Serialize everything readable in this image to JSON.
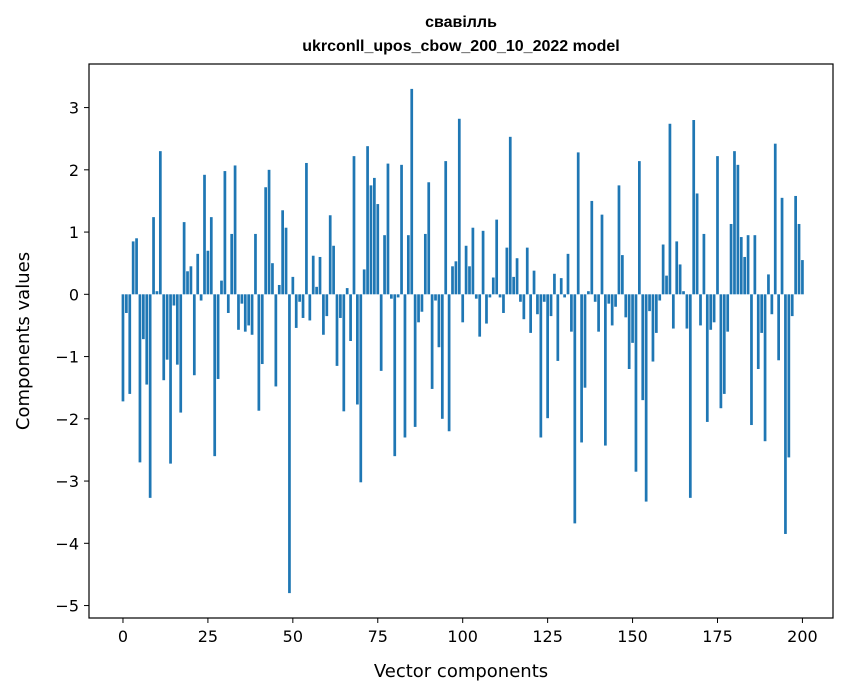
{
  "chart_data": {
    "type": "bar",
    "title_line1": "свавілль",
    "title_line2": "ukrconll_upos_cbow_200_10_2022 model",
    "xlabel": "Vector components",
    "ylabel": "Components values",
    "xlim": [
      -10,
      209
    ],
    "ylim": [
      -5.2,
      3.7
    ],
    "xticks": [
      0,
      25,
      50,
      75,
      100,
      125,
      150,
      175,
      200
    ],
    "yticks": [
      3,
      2,
      1,
      0,
      -1,
      -2,
      -3,
      -4,
      -5
    ],
    "bar_color": "#1f77b4",
    "grid": false,
    "legend": "none",
    "values": [
      -1.72,
      -0.3,
      -1.6,
      0.85,
      0.9,
      -2.7,
      -0.72,
      -1.45,
      -3.27,
      1.24,
      0.05,
      2.3,
      -1.38,
      -1.05,
      -2.72,
      -0.18,
      -1.13,
      -1.9,
      1.16,
      0.37,
      0.45,
      -1.3,
      0.65,
      -0.1,
      1.92,
      0.7,
      1.24,
      -2.6,
      -1.36,
      0.22,
      1.98,
      -0.3,
      0.97,
      2.07,
      -0.57,
      -0.15,
      -0.6,
      -0.5,
      -0.65,
      0.97,
      -1.87,
      -1.12,
      1.72,
      2.0,
      0.5,
      -1.48,
      0.15,
      1.35,
      1.07,
      -4.8,
      0.28,
      -0.54,
      -0.12,
      -0.38,
      2.11,
      -0.42,
      0.62,
      0.12,
      0.6,
      -0.65,
      -0.35,
      1.27,
      0.78,
      -1.15,
      -0.38,
      -1.88,
      0.1,
      -0.75,
      2.22,
      -1.77,
      -3.02,
      0.4,
      2.38,
      1.75,
      1.87,
      1.45,
      -1.23,
      0.95,
      2.1,
      -0.07,
      -2.6,
      -0.05,
      2.08,
      -2.3,
      0.95,
      3.3,
      -2.13,
      -0.45,
      -0.28,
      0.97,
      1.8,
      -1.52,
      -0.1,
      -0.85,
      -2.0,
      2.14,
      -2.2,
      0.45,
      0.53,
      2.82,
      -0.45,
      0.78,
      0.45,
      1.07,
      -0.07,
      -0.68,
      1.02,
      -0.47,
      -0.05,
      0.27,
      1.2,
      -0.05,
      -0.3,
      0.75,
      2.53,
      0.28,
      0.58,
      -0.12,
      -0.4,
      0.75,
      -0.62,
      0.38,
      -0.32,
      -2.3,
      -0.12,
      -1.99,
      -0.35,
      0.33,
      -1.07,
      0.26,
      -0.05,
      0.65,
      -0.6,
      -3.68,
      2.28,
      -2.38,
      -1.5,
      0.05,
      1.5,
      -0.12,
      -0.6,
      1.28,
      -2.43,
      -0.15,
      -0.5,
      -0.2,
      1.75,
      0.63,
      -0.37,
      -1.2,
      -0.78,
      -2.85,
      2.14,
      -1.7,
      -3.33,
      -0.27,
      -1.08,
      -0.62,
      -0.1,
      0.8,
      0.3,
      2.74,
      -0.55,
      0.85,
      0.48,
      0.05,
      -0.55,
      -3.27,
      2.8,
      1.62,
      -0.5,
      0.97,
      -2.05,
      -0.57,
      -0.45,
      2.22,
      -1.83,
      -1.6,
      -0.6,
      1.13,
      2.3,
      2.08,
      0.92,
      0.6,
      0.95,
      -2.1,
      0.95,
      -1.2,
      -0.62,
      -2.36,
      0.32,
      -0.32,
      2.42,
      -1.06,
      1.55,
      -3.85,
      -2.62,
      -0.35,
      1.58,
      1.13,
      0.55
    ]
  }
}
